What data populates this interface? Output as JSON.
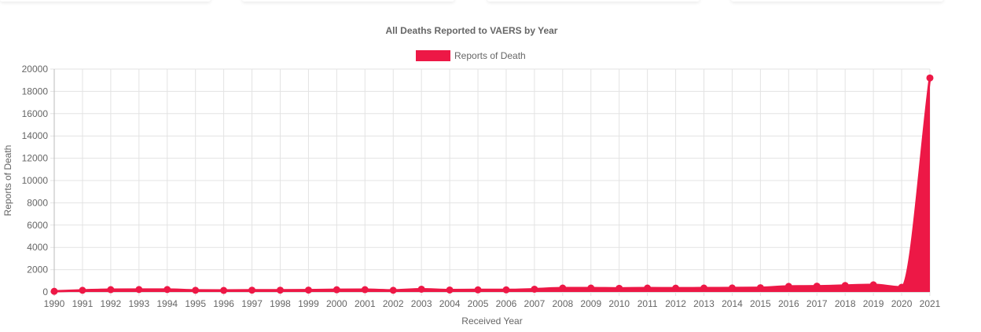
{
  "cards": 4,
  "chart_data": {
    "type": "line",
    "fill": "area",
    "title": "All Deaths Reported to VAERS by Year",
    "xlabel": "Received Year",
    "ylabel": "Reports of Death",
    "legend": {
      "position": "top",
      "entries": [
        "Reports of Death"
      ]
    },
    "color": "#ED1846",
    "grid": true,
    "ylim": [
      0,
      20000
    ],
    "yticks": [
      0,
      2000,
      4000,
      6000,
      8000,
      10000,
      12000,
      14000,
      16000,
      18000,
      20000
    ],
    "x": [
      "1990",
      "1991",
      "1992",
      "1993",
      "1994",
      "1995",
      "1996",
      "1997",
      "1998",
      "1999",
      "2000",
      "2001",
      "2002",
      "2003",
      "2004",
      "2005",
      "2006",
      "2007",
      "2008",
      "2009",
      "2010",
      "2011",
      "2012",
      "2013",
      "2014",
      "2015",
      "2016",
      "2017",
      "2018",
      "2019",
      "2020",
      "2021"
    ],
    "series": [
      {
        "name": "Reports of Death",
        "values": [
          60,
          150,
          210,
          220,
          220,
          150,
          140,
          160,
          160,
          170,
          200,
          210,
          150,
          250,
          180,
          190,
          190,
          250,
          350,
          350,
          330,
          350,
          340,
          350,
          360,
          380,
          500,
          520,
          580,
          640,
          420,
          19200
        ]
      }
    ]
  }
}
